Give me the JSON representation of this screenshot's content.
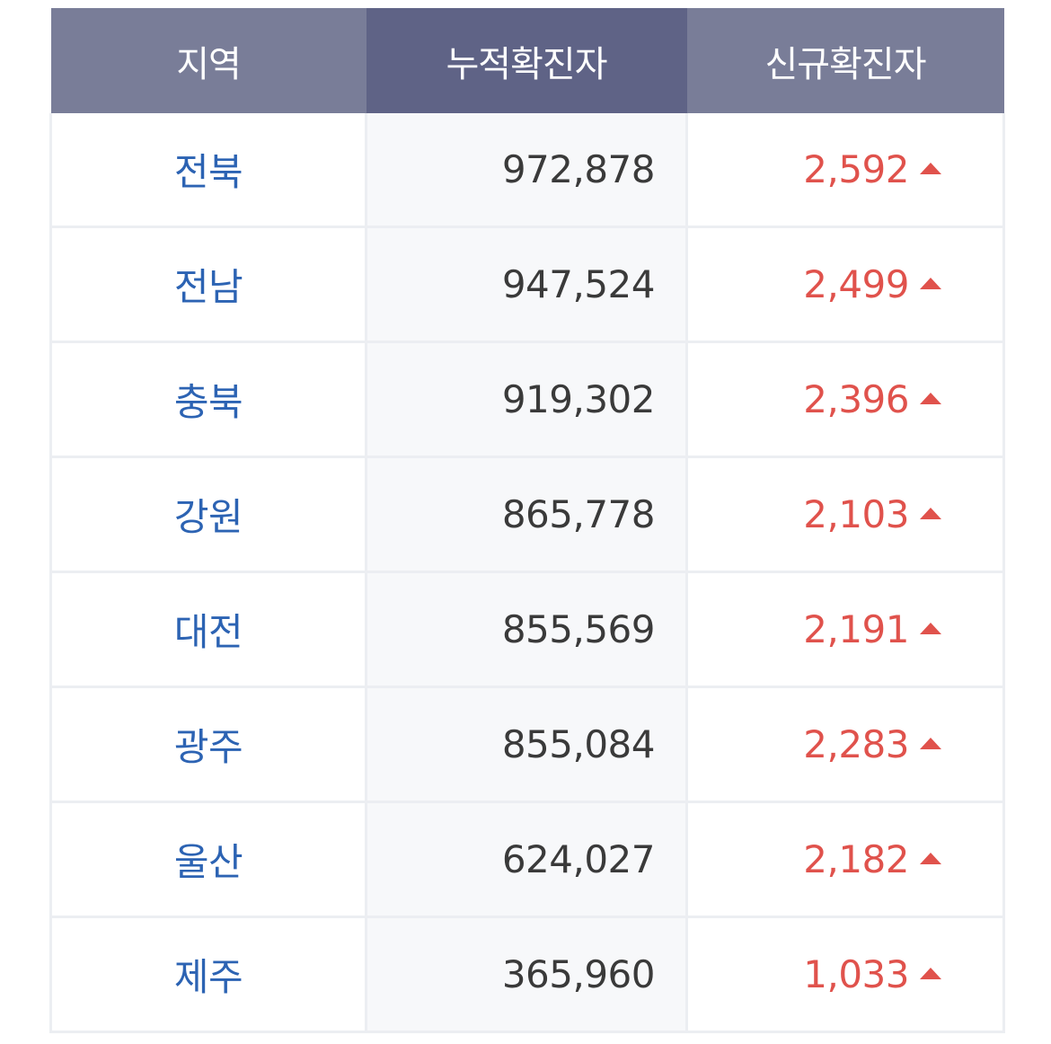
{
  "header": {
    "region": "지역",
    "total_cases": "누적확진자",
    "new_cases": "신규확진자"
  },
  "colors": {
    "header_bg": "#797d98",
    "header_bg_active": "#5f6386",
    "region_text": "#2c63b3",
    "increase_text": "#e0524c"
  },
  "icons": {
    "increase": "triangle-up-icon"
  },
  "rows": [
    {
      "region": "전북",
      "total": "972,878",
      "new": "2,592"
    },
    {
      "region": "전남",
      "total": "947,524",
      "new": "2,499"
    },
    {
      "region": "충북",
      "total": "919,302",
      "new": "2,396"
    },
    {
      "region": "강원",
      "total": "865,778",
      "new": "2,103"
    },
    {
      "region": "대전",
      "total": "855,569",
      "new": "2,191"
    },
    {
      "region": "광주",
      "total": "855,084",
      "new": "2,283"
    },
    {
      "region": "울산",
      "total": "624,027",
      "new": "2,182"
    },
    {
      "region": "제주",
      "total": "365,960",
      "new": "1,033"
    }
  ]
}
